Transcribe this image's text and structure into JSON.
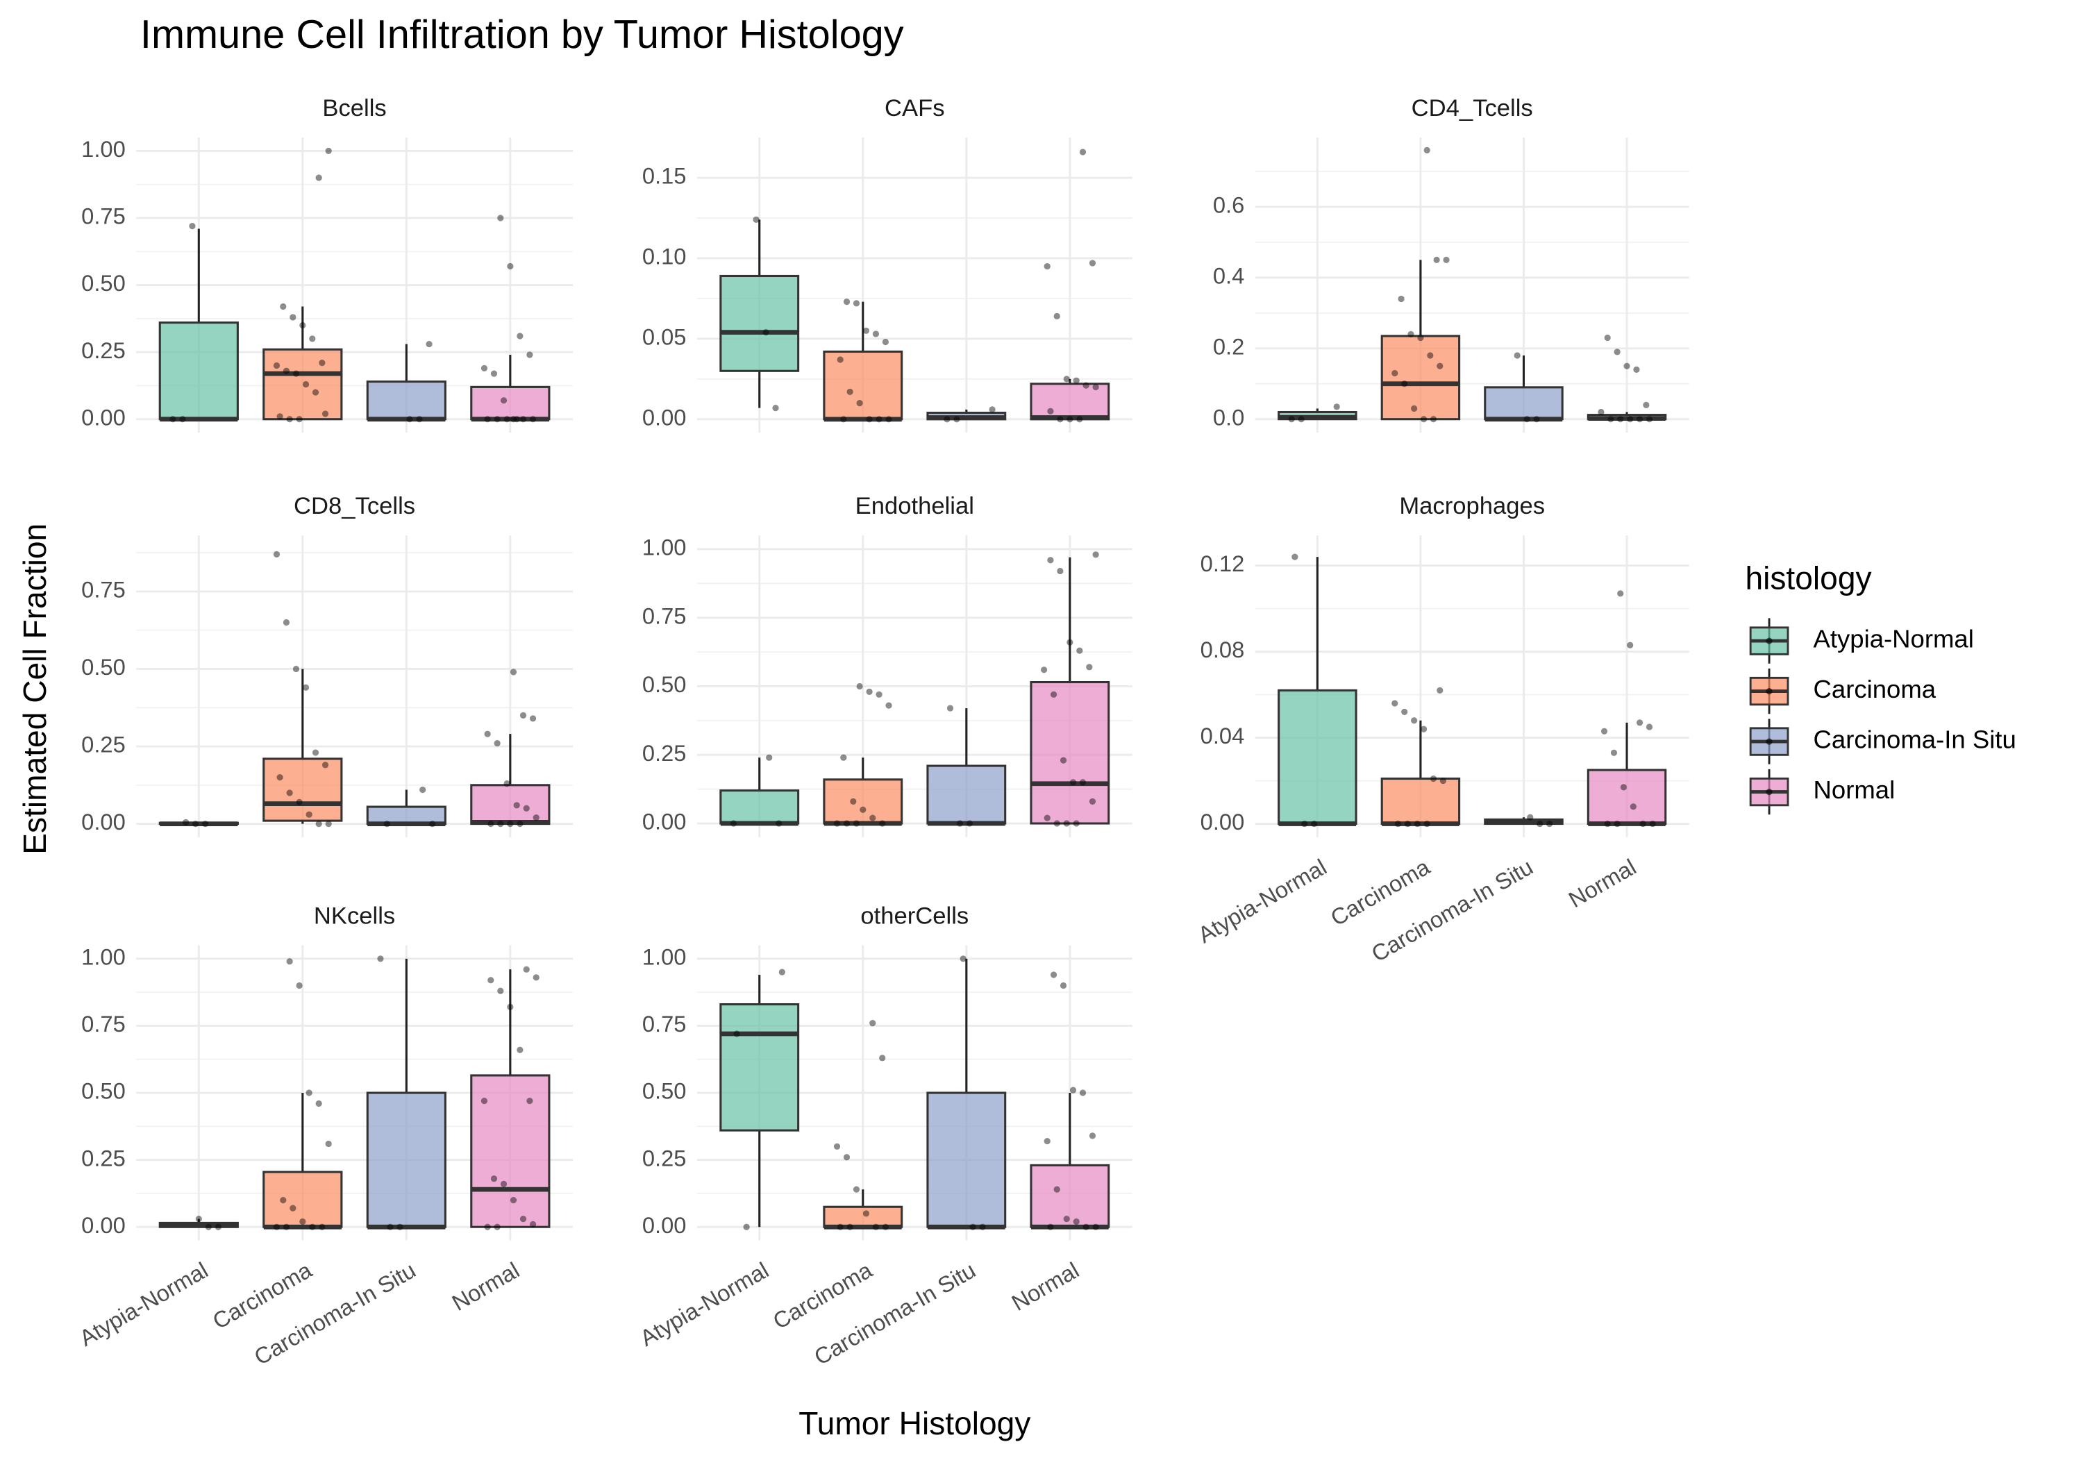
{
  "chart_data": {
    "type": "boxplot",
    "title": "Immune Cell Infiltration by Tumor Histology",
    "x_label": "Tumor Histology",
    "y_label": "Estimated Cell Fraction",
    "categories": [
      "Atypia-Normal",
      "Carcinoma",
      "Carcinoma-In Situ",
      "Normal"
    ],
    "legend": {
      "title": "histology",
      "position": "right",
      "entries": [
        {
          "name": "Atypia-Normal",
          "color": "#66c2a5"
        },
        {
          "name": "Carcinoma",
          "color": "#fc8d62"
        },
        {
          "name": "Carcinoma-In Situ",
          "color": "#8da0cb"
        },
        {
          "name": "Normal",
          "color": "#e78ac3"
        }
      ]
    },
    "grid": true,
    "facets": [
      {
        "title": "Bcells",
        "ylim": [
          -0.05,
          1.05
        ],
        "yticks": [
          {
            "value": 0,
            "label": "0.00"
          },
          {
            "value": 0.25,
            "label": "0.25"
          },
          {
            "value": 0.5,
            "label": "0.50"
          },
          {
            "value": 0.75,
            "label": "0.75"
          },
          {
            "value": 1,
            "label": "1.00"
          }
        ],
        "boxes": [
          {
            "whislo": 0,
            "q1": 0,
            "median": 0,
            "q3": 0.36,
            "whishi": 0.71,
            "points": [
              0,
              0,
              0.72
            ]
          },
          {
            "whislo": 0,
            "q1": 0,
            "median": 0.17,
            "q3": 0.26,
            "whishi": 0.42,
            "points": [
              0.9,
              1.0,
              0.42,
              0.38,
              0.35,
              0.3,
              0.21,
              0.2,
              0.18,
              0.17,
              0.13,
              0.1,
              0.02,
              0.01,
              0,
              0
            ]
          },
          {
            "whislo": 0,
            "q1": 0,
            "median": 0,
            "q3": 0.14,
            "whishi": 0.28,
            "points": [
              0,
              0,
              0.28
            ]
          },
          {
            "whislo": 0,
            "q1": 0,
            "median": 0,
            "q3": 0.12,
            "whishi": 0.24,
            "points": [
              0.75,
              0.57,
              0.31,
              0.24,
              0.19,
              0.17,
              0.07,
              0,
              0,
              0,
              0,
              0,
              0,
              0
            ]
          }
        ]
      },
      {
        "title": "CAFs",
        "ylim": [
          -0.0083,
          0.175
        ],
        "yticks": [
          {
            "value": 0,
            "label": "0.00"
          },
          {
            "value": 0.05,
            "label": "0.05"
          },
          {
            "value": 0.1,
            "label": "0.10"
          },
          {
            "value": 0.15,
            "label": "0.15"
          }
        ],
        "boxes": [
          {
            "whislo": 0.007,
            "q1": 0.03,
            "median": 0.054,
            "q3": 0.089,
            "whishi": 0.124,
            "points": [
              0.124,
              0.054,
              0.007
            ]
          },
          {
            "whislo": 0,
            "q1": 0,
            "median": 0,
            "q3": 0.042,
            "whishi": 0.073,
            "points": [
              0.073,
              0.072,
              0.055,
              0.053,
              0.048,
              0.037,
              0.017,
              0.01,
              0,
              0,
              0,
              0
            ]
          },
          {
            "whislo": 0,
            "q1": 0,
            "median": 0.001,
            "q3": 0.004,
            "whishi": 0.006,
            "points": [
              0.006,
              0,
              0
            ]
          },
          {
            "whislo": 0,
            "q1": 0,
            "median": 0.001,
            "q3": 0.022,
            "whishi": 0.025,
            "points": [
              0.166,
              0.097,
              0.095,
              0.064,
              0.025,
              0.024,
              0.021,
              0.02,
              0.005,
              0,
              0,
              0
            ]
          }
        ]
      },
      {
        "title": "CD4_Tcells",
        "ylim": [
          -0.038,
          0.796
        ],
        "yticks": [
          {
            "value": 0,
            "label": "0.0"
          },
          {
            "value": 0.2,
            "label": "0.2"
          },
          {
            "value": 0.4,
            "label": "0.4"
          },
          {
            "value": 0.6,
            "label": "0.6"
          }
        ],
        "boxes": [
          {
            "whislo": 0,
            "q1": 0,
            "median": 0.005,
            "q3": 0.02,
            "whishi": 0.03,
            "points": [
              0.035,
              0,
              0
            ]
          },
          {
            "whislo": 0,
            "q1": 0,
            "median": 0.1,
            "q3": 0.235,
            "whishi": 0.45,
            "points": [
              0.76,
              0.45,
              0.45,
              0.34,
              0.24,
              0.23,
              0.18,
              0.15,
              0.13,
              0.1,
              0.03,
              0,
              0
            ]
          },
          {
            "whislo": 0,
            "q1": 0,
            "median": 0,
            "q3": 0.09,
            "whishi": 0.18,
            "points": [
              0.18,
              0,
              0
            ]
          },
          {
            "whislo": 0,
            "q1": 0,
            "median": 0.002,
            "q3": 0.012,
            "whishi": 0.02,
            "points": [
              0.23,
              0.19,
              0.15,
              0.14,
              0.04,
              0.02,
              0,
              0,
              0,
              0,
              0
            ]
          }
        ]
      },
      {
        "title": "CD8_Tcells",
        "ylim": [
          -0.043,
          0.931
        ],
        "yticks": [
          {
            "value": 0,
            "label": "0.00"
          },
          {
            "value": 0.25,
            "label": "0.25"
          },
          {
            "value": 0.5,
            "label": "0.50"
          },
          {
            "value": 0.75,
            "label": "0.75"
          }
        ],
        "boxes": [
          {
            "whislo": 0,
            "q1": 0,
            "median": 0,
            "q3": 0.003,
            "whishi": 0.005,
            "points": [
              0.005,
              0,
              0
            ]
          },
          {
            "whislo": 0,
            "q1": 0.01,
            "median": 0.065,
            "q3": 0.21,
            "whishi": 0.5,
            "points": [
              0.87,
              0.65,
              0.5,
              0.44,
              0.23,
              0.19,
              0.15,
              0.1,
              0.07,
              0.03,
              0,
              0
            ]
          },
          {
            "whislo": 0,
            "q1": 0,
            "median": 0,
            "q3": 0.055,
            "whishi": 0.11,
            "points": [
              0.11,
              0,
              0
            ]
          },
          {
            "whislo": 0,
            "q1": 0,
            "median": 0.005,
            "q3": 0.125,
            "whishi": 0.29,
            "points": [
              0.49,
              0.35,
              0.34,
              0.29,
              0.26,
              0.13,
              0.06,
              0.05,
              0.02,
              0,
              0,
              0,
              0
            ]
          }
        ]
      },
      {
        "title": "Endothelial",
        "ylim": [
          -0.05,
          1.05
        ],
        "yticks": [
          {
            "value": 0,
            "label": "0.00"
          },
          {
            "value": 0.25,
            "label": "0.25"
          },
          {
            "value": 0.5,
            "label": "0.50"
          },
          {
            "value": 0.75,
            "label": "0.75"
          },
          {
            "value": 1,
            "label": "1.00"
          }
        ],
        "boxes": [
          {
            "whislo": 0,
            "q1": 0,
            "median": 0,
            "q3": 0.12,
            "whishi": 0.24,
            "points": [
              0.24,
              0,
              0
            ]
          },
          {
            "whislo": 0,
            "q1": 0,
            "median": 0,
            "q3": 0.16,
            "whishi": 0.24,
            "points": [
              0.5,
              0.48,
              0.47,
              0.43,
              0.24,
              0.08,
              0.05,
              0.02,
              0,
              0,
              0,
              0
            ]
          },
          {
            "whislo": 0,
            "q1": 0,
            "median": 0,
            "q3": 0.21,
            "whishi": 0.42,
            "points": [
              0.42,
              0,
              0
            ]
          },
          {
            "whislo": 0,
            "q1": 0,
            "median": 0.145,
            "q3": 0.515,
            "whishi": 0.97,
            "points": [
              0.98,
              0.96,
              0.92,
              0.66,
              0.63,
              0.57,
              0.56,
              0.47,
              0.23,
              0.15,
              0.15,
              0.08,
              0.02,
              0,
              0,
              0
            ]
          }
        ]
      },
      {
        "title": "Macrophages",
        "ylim": [
          -0.0062,
          0.134
        ],
        "yticks": [
          {
            "value": 0,
            "label": "0.00"
          },
          {
            "value": 0.04,
            "label": "0.04"
          },
          {
            "value": 0.08,
            "label": "0.08"
          },
          {
            "value": 0.12,
            "label": "0.12"
          }
        ],
        "boxes": [
          {
            "whislo": 0,
            "q1": 0,
            "median": 0,
            "q3": 0.062,
            "whishi": 0.124,
            "points": [
              0.124,
              0,
              0
            ]
          },
          {
            "whislo": 0,
            "q1": 0,
            "median": 0,
            "q3": 0.021,
            "whishi": 0.048,
            "points": [
              0.062,
              0.056,
              0.052,
              0.048,
              0.044,
              0.021,
              0.02,
              0,
              0,
              0,
              0
            ]
          },
          {
            "whislo": 0,
            "q1": 0,
            "median": 0.001,
            "q3": 0.002,
            "whishi": 0.003,
            "points": [
              0.003,
              0,
              0
            ]
          },
          {
            "whislo": 0,
            "q1": 0,
            "median": 0,
            "q3": 0.025,
            "whishi": 0.047,
            "points": [
              0.107,
              0.083,
              0.047,
              0.045,
              0.043,
              0.033,
              0.017,
              0.008,
              0,
              0,
              0,
              0
            ]
          }
        ]
      },
      {
        "title": "NKcells",
        "ylim": [
          -0.05,
          1.05
        ],
        "yticks": [
          {
            "value": 0,
            "label": "0.00"
          },
          {
            "value": 0.25,
            "label": "0.25"
          },
          {
            "value": 0.5,
            "label": "0.50"
          },
          {
            "value": 0.75,
            "label": "0.75"
          },
          {
            "value": 1,
            "label": "1.00"
          }
        ],
        "boxes": [
          {
            "whislo": 0,
            "q1": 0,
            "median": 0.005,
            "q3": 0.015,
            "whishi": 0.03,
            "points": [
              0.03,
              0,
              0
            ]
          },
          {
            "whislo": 0,
            "q1": 0,
            "median": 0,
            "q3": 0.205,
            "whishi": 0.5,
            "points": [
              0.99,
              0.9,
              0.5,
              0.46,
              0.31,
              0.1,
              0.07,
              0.02,
              0,
              0,
              0,
              0
            ]
          },
          {
            "whislo": 0,
            "q1": 0,
            "median": 0,
            "q3": 0.5,
            "whishi": 1,
            "points": [
              1,
              0,
              0
            ]
          },
          {
            "whislo": 0,
            "q1": 0,
            "median": 0.14,
            "q3": 0.565,
            "whishi": 0.96,
            "points": [
              0.96,
              0.93,
              0.92,
              0.88,
              0.82,
              0.66,
              0.47,
              0.47,
              0.18,
              0.16,
              0.1,
              0.03,
              0.01,
              0,
              0
            ]
          }
        ]
      },
      {
        "title": "otherCells",
        "ylim": [
          -0.05,
          1.05
        ],
        "yticks": [
          {
            "value": 0,
            "label": "0.00"
          },
          {
            "value": 0.25,
            "label": "0.25"
          },
          {
            "value": 0.5,
            "label": "0.50"
          },
          {
            "value": 0.75,
            "label": "0.75"
          },
          {
            "value": 1,
            "label": "1.00"
          }
        ],
        "boxes": [
          {
            "whislo": 0,
            "q1": 0.36,
            "median": 0.72,
            "q3": 0.83,
            "whishi": 0.94,
            "points": [
              0.95,
              0.72,
              0
            ]
          },
          {
            "whislo": 0,
            "q1": 0,
            "median": 0,
            "q3": 0.075,
            "whishi": 0.14,
            "points": [
              0.76,
              0.63,
              0.3,
              0.26,
              0.14,
              0.05,
              0,
              0,
              0,
              0
            ]
          },
          {
            "whislo": 0,
            "q1": 0,
            "median": 0,
            "q3": 0.5,
            "whishi": 1,
            "points": [
              1,
              0,
              0
            ]
          },
          {
            "whislo": 0,
            "q1": 0,
            "median": 0,
            "q3": 0.23,
            "whishi": 0.5,
            "points": [
              0.94,
              0.9,
              0.51,
              0.5,
              0.34,
              0.32,
              0.14,
              0.03,
              0.02,
              0,
              0,
              0
            ]
          }
        ]
      }
    ]
  }
}
